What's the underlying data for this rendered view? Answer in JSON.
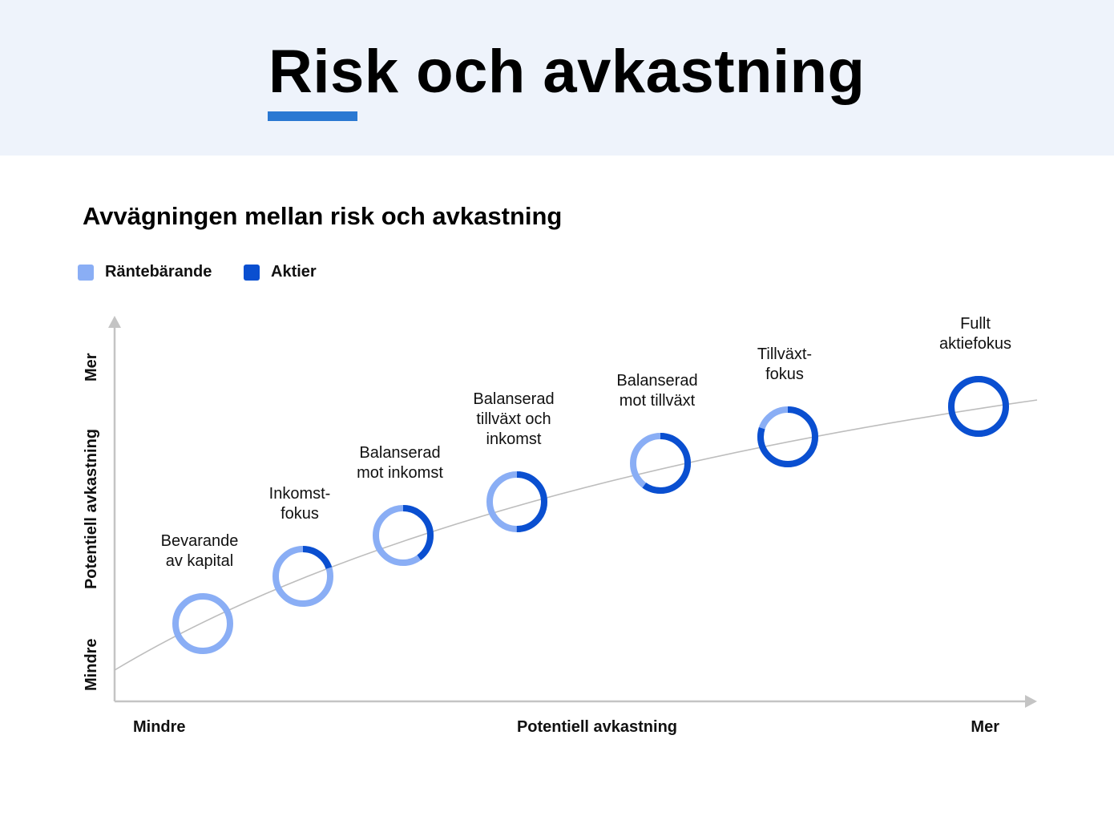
{
  "header": {
    "title": "Risk och avkastning",
    "accent_color": "#2a78d2",
    "background_color": "#eef3fb"
  },
  "chart_data": {
    "type": "scatter",
    "title": "Avvägningen mellan risk och avkastning",
    "legend": [
      {
        "name": "Räntebärande",
        "color": "#8aaef5"
      },
      {
        "name": "Aktier",
        "color": "#0a4fd0"
      }
    ],
    "x_axis": {
      "label": "Potentiell avkastning",
      "min_label": "Mindre",
      "max_label": "Mer"
    },
    "y_axis": {
      "label": "Potentiell avkastning",
      "min_label": "Mindre",
      "max_label": "Mer"
    },
    "curve": "concave upward-increasing trend line",
    "portfolios": [
      {
        "label_lines": [
          "Bevarande",
          "av kapital"
        ],
        "x": 1,
        "y": 1.0,
        "aktier_share": 0.0
      },
      {
        "label_lines": [
          "Inkomst-",
          "fokus"
        ],
        "x": 2,
        "y": 2.2,
        "aktier_share": 0.2
      },
      {
        "label_lines": [
          "Balanserad",
          "mot inkomst"
        ],
        "x": 3,
        "y": 3.1,
        "aktier_share": 0.4
      },
      {
        "label_lines": [
          "Balanserad",
          "tillväxt och",
          "inkomst"
        ],
        "x": 4,
        "y": 4.0,
        "aktier_share": 0.5
      },
      {
        "label_lines": [
          "Balanserad",
          "mot tillväxt"
        ],
        "x": 5,
        "y": 5.0,
        "aktier_share": 0.6
      },
      {
        "label_lines": [
          "Tillväxt-",
          "fokus"
        ],
        "x": 6,
        "y": 5.7,
        "aktier_share": 0.8
      },
      {
        "label_lines": [
          "Fullt",
          "aktiefokus"
        ],
        "x": 7,
        "y": 6.5,
        "aktier_share": 1.0
      }
    ]
  }
}
